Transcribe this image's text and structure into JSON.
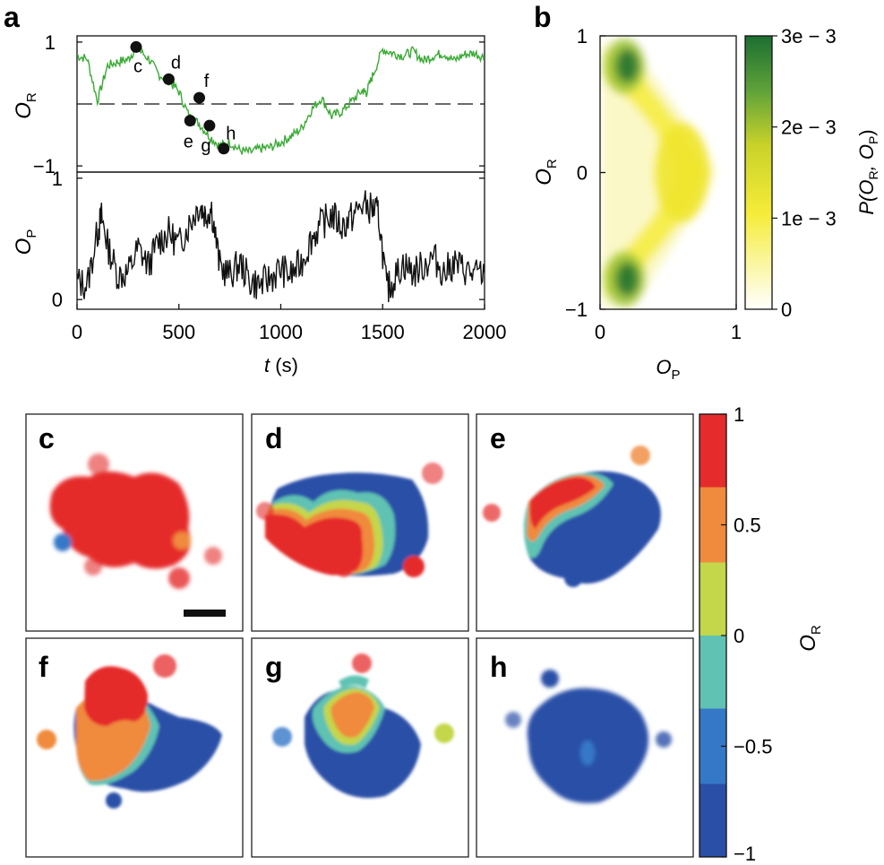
{
  "panel_labels": [
    "a",
    "b",
    "c",
    "d",
    "e",
    "f",
    "g",
    "h"
  ],
  "colors": {
    "or_trace": "#3aaa35",
    "op_trace": "#111111",
    "heat_low": "#ffffff",
    "heat_mid": "#f2e81a",
    "heat_high": "#1c6e32",
    "level_colors": [
      "#2a4fa7",
      "#3578c8",
      "#5fc2b2",
      "#c4d64a",
      "#f08a3c",
      "#e52b2b"
    ]
  },
  "chart_data": [
    {
      "id": "a-top",
      "type": "line",
      "ylabel": "O",
      "ylabel_sub": "R",
      "xlim": [
        0,
        2000
      ],
      "ylim": [
        -1.1,
        1.1
      ],
      "yticks": [
        "1",
        "−1"
      ],
      "ytick_values": [
        1,
        -1
      ],
      "dashed_reference": 0,
      "series": [
        {
          "name": "O_R",
          "x": [
            0,
            50,
            100,
            150,
            200,
            250,
            290,
            350,
            400,
            450,
            500,
            550,
            600,
            650,
            700,
            750,
            800,
            850,
            900,
            950,
            1000,
            1050,
            1100,
            1150,
            1200,
            1250,
            1300,
            1350,
            1400,
            1420,
            1450,
            1500,
            1550,
            1600,
            1650,
            1700,
            1750,
            1800,
            1850,
            1900,
            1950,
            2000
          ],
          "y": [
            0.78,
            0.73,
            0.05,
            0.62,
            0.68,
            0.72,
            0.9,
            0.74,
            0.48,
            0.38,
            0.2,
            -0.2,
            -0.32,
            -0.52,
            -0.68,
            -0.62,
            -0.75,
            -0.78,
            -0.72,
            -0.7,
            -0.62,
            -0.52,
            -0.4,
            -0.1,
            0.1,
            -0.2,
            -0.12,
            0.05,
            0.22,
            0.18,
            0.45,
            0.88,
            0.82,
            0.78,
            0.85,
            0.7,
            0.78,
            0.82,
            0.7,
            0.8,
            0.82,
            0.75
          ]
        }
      ],
      "markers": [
        {
          "label": "c",
          "t": 290,
          "value": 0.92
        },
        {
          "label": "d",
          "t": 450,
          "value": 0.4
        },
        {
          "label": "f",
          "t": 600,
          "value": 0.1
        },
        {
          "label": "e",
          "t": 555,
          "value": -0.27
        },
        {
          "label": "g",
          "t": 650,
          "value": -0.35
        },
        {
          "label": "h",
          "t": 720,
          "value": -0.72
        }
      ]
    },
    {
      "id": "a-bottom",
      "type": "line",
      "ylabel": "O",
      "ylabel_sub": "P",
      "xlabel": "t",
      "xlabel_unit": " (s)",
      "xlim": [
        0,
        2000
      ],
      "ylim": [
        -0.08,
        1.05
      ],
      "xticks": [
        "0",
        "500",
        "1000",
        "1500",
        "2000"
      ],
      "xtick_values": [
        0,
        500,
        1000,
        1500,
        2000
      ],
      "yticks": [
        "1",
        "0"
      ],
      "ytick_values": [
        1,
        0
      ],
      "series": [
        {
          "name": "O_P",
          "x": [
            0,
            50,
            100,
            120,
            150,
            200,
            250,
            300,
            350,
            400,
            450,
            500,
            550,
            600,
            630,
            660,
            700,
            750,
            800,
            850,
            900,
            950,
            1000,
            1050,
            1100,
            1150,
            1200,
            1250,
            1300,
            1350,
            1400,
            1450,
            1480,
            1520,
            1550,
            1600,
            1650,
            1700,
            1750,
            1800,
            1850,
            1900,
            1950,
            2000
          ],
          "y": [
            0.15,
            0.12,
            0.55,
            0.68,
            0.45,
            0.2,
            0.22,
            0.42,
            0.28,
            0.48,
            0.55,
            0.45,
            0.62,
            0.78,
            0.7,
            0.75,
            0.28,
            0.2,
            0.3,
            0.15,
            0.12,
            0.18,
            0.25,
            0.2,
            0.3,
            0.5,
            0.62,
            0.7,
            0.6,
            0.68,
            0.78,
            0.75,
            0.7,
            0.08,
            0.15,
            0.3,
            0.22,
            0.28,
            0.35,
            0.22,
            0.3,
            0.25,
            0.2,
            0.22
          ]
        }
      ]
    },
    {
      "id": "b",
      "type": "heatmap",
      "xlabel": "O",
      "xlabel_sub": "P",
      "ylabel": "O",
      "ylabel_sub": "R",
      "xlim": [
        0,
        1
      ],
      "ylim": [
        -1,
        1
      ],
      "xticks": [
        "0",
        "1"
      ],
      "xtick_values": [
        0,
        1
      ],
      "yticks": [
        "1",
        "0",
        "−1"
      ],
      "ytick_values": [
        1,
        0,
        -1
      ],
      "colorbar": {
        "label": "P(O",
        "label_sub1": "R",
        "label_mid": ", O",
        "label_sub2": "P",
        "label_end": ")",
        "range": [
          0,
          0.003
        ],
        "ticks": [
          "3e − 3",
          "2e − 3",
          "1e − 3",
          "0"
        ],
        "tick_values": [
          0.003,
          0.002,
          0.001,
          0
        ]
      },
      "clusters": [
        {
          "op": 0.18,
          "or": 0.78,
          "peak": 0.003
        },
        {
          "op": 0.18,
          "or": -0.78,
          "peak": 0.003
        },
        {
          "op": 0.6,
          "or": 0.0,
          "peak": 0.0012
        }
      ]
    },
    {
      "id": "maps",
      "type": "heatmap",
      "colorbar": {
        "label": "O",
        "label_sub": "R",
        "range": [
          -1,
          1
        ],
        "ticks": [
          "1",
          "0.5",
          "0",
          "−0.5",
          "−1"
        ],
        "tick_values": [
          1,
          0.5,
          0,
          -0.5,
          -1
        ],
        "levels": [
          -1,
          -0.67,
          -0.33,
          0,
          0.33,
          0.67,
          1
        ]
      },
      "maps": [
        {
          "label": "c",
          "has_scale_bar": true
        },
        {
          "label": "d",
          "has_scale_bar": false
        },
        {
          "label": "e",
          "has_scale_bar": false
        },
        {
          "label": "f",
          "has_scale_bar": false
        },
        {
          "label": "g",
          "has_scale_bar": false
        },
        {
          "label": "h",
          "has_scale_bar": false
        }
      ]
    }
  ]
}
